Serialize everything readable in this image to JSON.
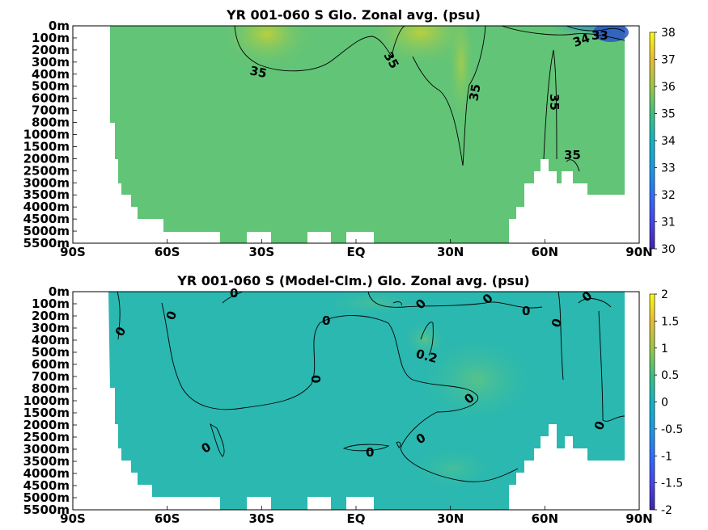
{
  "chart_data": [
    {
      "type": "heatmap",
      "title": "YR 001-060 S Glo. Zonal avg. (psu)",
      "x_ticks": [
        "90S",
        "60S",
        "30S",
        "EQ",
        "30N",
        "60N",
        "90N"
      ],
      "x_range": [
        -90,
        90
      ],
      "y_ticks": [
        "0m",
        "100m",
        "200m",
        "300m",
        "400m",
        "500m",
        "600m",
        "700m",
        "800m",
        "1000m",
        "1500m",
        "2000m",
        "2500m",
        "3000m",
        "3500m",
        "4000m",
        "4500m",
        "5000m",
        "5500m"
      ],
      "colorbar": {
        "min": 30,
        "max": 38,
        "ticks": [
          "38",
          "37",
          "36",
          "35",
          "34",
          "33",
          "32",
          "31",
          "30"
        ]
      },
      "contour_labels": [
        "35",
        "35",
        "35",
        "35",
        "35",
        "34",
        "33"
      ],
      "description_values": {
        "typical_salinity": 34.7,
        "subtropical_max": 36.5,
        "arctic_surface_min": 31.5
      }
    },
    {
      "type": "heatmap",
      "title": "YR 001-060 S (Model-Clm.) Glo. Zonal avg. (psu)",
      "x_ticks": [
        "90S",
        "60S",
        "30S",
        "EQ",
        "30N",
        "60N",
        "90N"
      ],
      "x_range": [
        -90,
        90
      ],
      "y_ticks": [
        "0m",
        "100m",
        "200m",
        "300m",
        "400m",
        "500m",
        "600m",
        "700m",
        "800m",
        "1000m",
        "1500m",
        "2000m",
        "2500m",
        "3000m",
        "3500m",
        "4000m",
        "4500m",
        "5000m",
        "5500m"
      ],
      "colorbar": {
        "min": -2,
        "max": 2,
        "ticks": [
          "2",
          "1.5",
          "1",
          "0.5",
          "0",
          "-0.5",
          "-1",
          "-1.5",
          "-2"
        ]
      },
      "contour_labels": [
        "0",
        "0",
        "0",
        "0",
        "0",
        "0",
        "0",
        "0",
        "0",
        "0",
        "0",
        "0",
        "0",
        "0",
        "0",
        "0.2"
      ],
      "description_values": {
        "typical_bias": -0.1,
        "max_bias": 0.2
      }
    }
  ],
  "colors": {
    "p1_base": "#62c477",
    "p1_high": "#a8cd46",
    "p1_low": "#2e9ec2",
    "p2_base": "#2ab8b0",
    "p2_light": "#45c09a"
  }
}
